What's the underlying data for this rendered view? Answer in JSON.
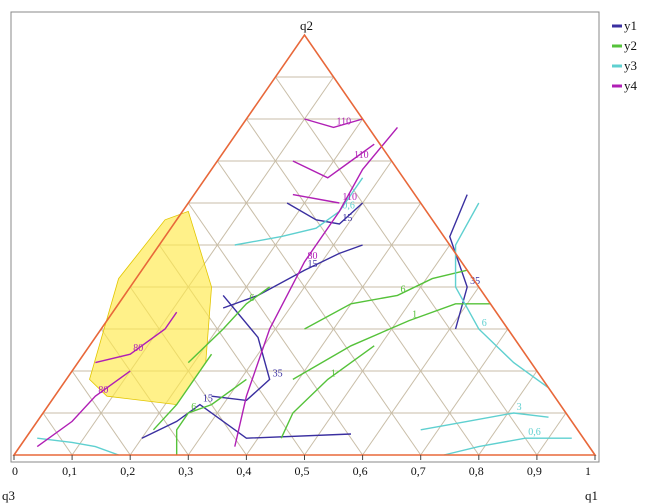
{
  "chart_data": {
    "type": "ternary-contour",
    "vertex_labels": {
      "top": "q2",
      "bottom_left": "q3",
      "bottom_right": "q1"
    },
    "axis": {
      "min": 0,
      "max": 1,
      "ticks": [
        "0",
        "0,1",
        "0,2",
        "0,3",
        "0,4",
        "0,5",
        "0,6",
        "0,7",
        "0,8",
        "0,9",
        "1"
      ]
    },
    "grid": true,
    "grid_divisions": 10,
    "legend_position": "top-right",
    "legend": [
      {
        "name": "y1",
        "color": "#3a2fa0"
      },
      {
        "name": "y2",
        "color": "#55c23a"
      },
      {
        "name": "y3",
        "color": "#5fd0d0"
      },
      {
        "name": "y4",
        "color": "#b01fb5"
      }
    ],
    "feasible_region_color": "#ffe94a",
    "contours": [
      {
        "series": "y1",
        "level": "15",
        "points": [
          [
            0.36,
            0.35
          ],
          [
            0.42,
            0.38
          ],
          [
            0.5,
            0.44
          ],
          [
            0.56,
            0.48
          ],
          [
            0.6,
            0.5
          ]
        ]
      },
      {
        "series": "y1",
        "level": "15",
        "points": [
          [
            0.47,
            0.6
          ],
          [
            0.52,
            0.56
          ],
          [
            0.56,
            0.55
          ],
          [
            0.6,
            0.6
          ]
        ]
      },
      {
        "series": "y1",
        "level": "35",
        "points": [
          [
            0.78,
            0.62
          ],
          [
            0.75,
            0.52
          ],
          [
            0.78,
            0.4
          ],
          [
            0.76,
            0.3
          ]
        ]
      },
      {
        "series": "y1",
        "level": "35",
        "points": [
          [
            0.36,
            0.38
          ],
          [
            0.42,
            0.28
          ],
          [
            0.44,
            0.18
          ],
          [
            0.4,
            0.13
          ],
          [
            0.34,
            0.14
          ]
        ]
      },
      {
        "series": "y1",
        "level": "15",
        "points": [
          [
            0.22,
            0.04
          ],
          [
            0.28,
            0.08
          ],
          [
            0.32,
            0.12
          ],
          [
            0.4,
            0.04
          ],
          [
            0.58,
            0.05
          ]
        ]
      },
      {
        "series": "y2",
        "level": "6",
        "points": [
          [
            0.3,
            0.22
          ],
          [
            0.36,
            0.3
          ],
          [
            0.4,
            0.36
          ],
          [
            0.44,
            0.4
          ]
        ]
      },
      {
        "series": "y2",
        "level": "6",
        "points": [
          [
            0.5,
            0.3
          ],
          [
            0.58,
            0.36
          ],
          [
            0.66,
            0.38
          ],
          [
            0.72,
            0.42
          ],
          [
            0.78,
            0.44
          ]
        ]
      },
      {
        "series": "y2",
        "level": "1",
        "points": [
          [
            0.48,
            0.18
          ],
          [
            0.58,
            0.26
          ],
          [
            0.68,
            0.32
          ],
          [
            0.76,
            0.36
          ],
          [
            0.82,
            0.36
          ]
        ]
      },
      {
        "series": "y2",
        "level": "1",
        "points": [
          [
            0.46,
            0.04
          ],
          [
            0.48,
            0.1
          ],
          [
            0.54,
            0.18
          ],
          [
            0.62,
            0.26
          ]
        ]
      },
      {
        "series": "y2",
        "level": "6",
        "points": [
          [
            0.28,
            0.0
          ],
          [
            0.28,
            0.06
          ],
          [
            0.3,
            0.1
          ],
          [
            0.34,
            0.12
          ],
          [
            0.4,
            0.18
          ]
        ]
      },
      {
        "series": "y2",
        "level": "",
        "points": [
          [
            0.24,
            0.06
          ],
          [
            0.28,
            0.12
          ],
          [
            0.32,
            0.2
          ],
          [
            0.34,
            0.24
          ]
        ]
      },
      {
        "series": "y3",
        "level": "0,6",
        "points": [
          [
            0.38,
            0.5
          ],
          [
            0.46,
            0.52
          ],
          [
            0.52,
            0.54
          ],
          [
            0.56,
            0.58
          ],
          [
            0.58,
            0.62
          ],
          [
            0.6,
            0.66
          ]
        ]
      },
      {
        "series": "y3",
        "level": "6",
        "points": [
          [
            0.8,
            0.6
          ],
          [
            0.76,
            0.5
          ],
          [
            0.76,
            0.4
          ],
          [
            0.8,
            0.3
          ],
          [
            0.86,
            0.22
          ],
          [
            0.92,
            0.16
          ]
        ]
      },
      {
        "series": "y3",
        "level": "3",
        "points": [
          [
            0.7,
            0.06
          ],
          [
            0.78,
            0.08
          ],
          [
            0.86,
            0.1
          ],
          [
            0.92,
            0.09
          ]
        ]
      },
      {
        "series": "y3",
        "level": "0,6",
        "points": [
          [
            0.74,
            0.0
          ],
          [
            0.8,
            0.02
          ],
          [
            0.88,
            0.04
          ],
          [
            0.96,
            0.04
          ]
        ]
      },
      {
        "series": "y3",
        "level": "",
        "points": [
          [
            0.04,
            0.04
          ],
          [
            0.1,
            0.03
          ],
          [
            0.14,
            0.02
          ],
          [
            0.18,
            0.0
          ]
        ]
      },
      {
        "series": "y4",
        "level": "110",
        "points": [
          [
            0.5,
            0.8
          ],
          [
            0.55,
            0.78
          ],
          [
            0.6,
            0.8
          ]
        ]
      },
      {
        "series": "y4",
        "level": "110",
        "points": [
          [
            0.48,
            0.7
          ],
          [
            0.54,
            0.66
          ],
          [
            0.58,
            0.7
          ],
          [
            0.62,
            0.74
          ]
        ]
      },
      {
        "series": "y4",
        "level": "110",
        "points": [
          [
            0.48,
            0.62
          ],
          [
            0.56,
            0.6
          ]
        ]
      },
      {
        "series": "y4",
        "level": "80",
        "points": [
          [
            0.38,
            0.02
          ],
          [
            0.4,
            0.14
          ],
          [
            0.44,
            0.3
          ],
          [
            0.5,
            0.46
          ],
          [
            0.56,
            0.58
          ],
          [
            0.6,
            0.68
          ],
          [
            0.66,
            0.78
          ]
        ]
      },
      {
        "series": "y4",
        "level": "80",
        "points": [
          [
            0.04,
            0.02
          ],
          [
            0.1,
            0.08
          ],
          [
            0.14,
            0.14
          ],
          [
            0.2,
            0.2
          ]
        ]
      },
      {
        "series": "y4",
        "level": "80",
        "points": [
          [
            0.28,
            0.34
          ],
          [
            0.26,
            0.3
          ],
          [
            0.2,
            0.24
          ],
          [
            0.14,
            0.22
          ]
        ]
      }
    ]
  }
}
